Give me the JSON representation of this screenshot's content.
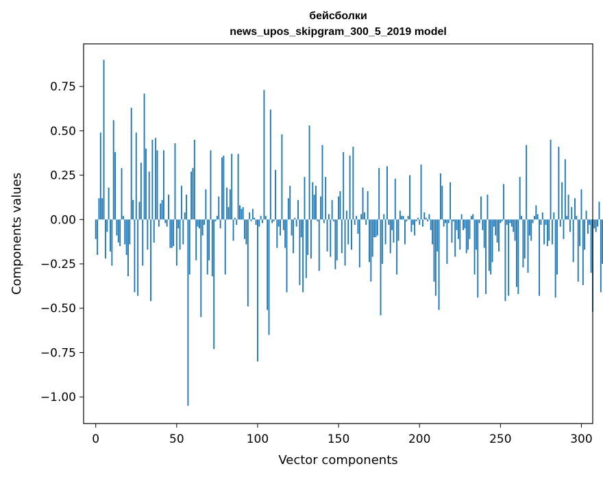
{
  "chart_data": {
    "type": "bar",
    "title": "бейсболки",
    "subtitle": "news_upos_skipgram_300_5_2019 model",
    "xlabel": "Vector components",
    "ylabel": "Components values",
    "xlim": [
      -7.5,
      307
    ],
    "ylim": [
      -1.15,
      0.99
    ],
    "xticks": [
      0,
      50,
      100,
      150,
      200,
      250,
      300
    ],
    "yticks": [
      -1.0,
      -0.75,
      -0.5,
      -0.25,
      0.0,
      0.25,
      0.5,
      0.75
    ],
    "ytick_labels": [
      "−1.00",
      "−0.75",
      "−0.50",
      "−0.25",
      "0.00",
      "0.25",
      "0.50",
      "0.75"
    ],
    "grid": false,
    "bar_color": "#1f77b4",
    "values": [
      -0.11,
      -0.2,
      0.12,
      0.49,
      0.12,
      0.9,
      -0.22,
      -0.07,
      0.18,
      -0.18,
      -0.26,
      0.56,
      0.38,
      -0.09,
      -0.13,
      -0.15,
      0.29,
      0.02,
      -0.14,
      -0.2,
      -0.32,
      -0.14,
      0.63,
      0.11,
      -0.41,
      0.49,
      -0.43,
      0.1,
      0.32,
      -0.26,
      0.71,
      0.4,
      -0.17,
      0.27,
      -0.46,
      0.45,
      -0.13,
      0.46,
      0.39,
      -0.04,
      0.09,
      0.11,
      0.39,
      -0.02,
      -0.04,
      0.14,
      -0.16,
      -0.16,
      -0.15,
      0.43,
      -0.26,
      -0.05,
      -0.17,
      0.19,
      -0.14,
      0.04,
      0.14,
      -1.05,
      -0.31,
      0.27,
      0.29,
      0.45,
      -0.23,
      -0.04,
      -0.05,
      -0.55,
      -0.09,
      -0.03,
      0.17,
      -0.31,
      -0.23,
      0.39,
      -0.32,
      -0.73,
      -0.01,
      0.02,
      0.13,
      -0.05,
      0.35,
      0.36,
      -0.31,
      0.18,
      0.07,
      0.17,
      0.37,
      -0.12,
      0.01,
      -0.03,
      0.37,
      0.08,
      0.06,
      0.07,
      -0.11,
      -0.14,
      -0.49,
      0.04,
      -0.01,
      0.06,
      0.01,
      -0.03,
      -0.8,
      -0.04,
      0.02,
      -0.02,
      0.73,
      0.02,
      -0.51,
      -0.65,
      0.62,
      -0.02,
      -0.01,
      0.28,
      -0.16,
      -0.04,
      -0.09,
      0.48,
      -0.06,
      -0.16,
      -0.41,
      0.12,
      0.19,
      -0.09,
      -0.19,
      0.01,
      -0.04,
      0.11,
      -0.37,
      -0.1,
      -0.41,
      0.24,
      -0.33,
      -0.2,
      0.53,
      -0.22,
      0.21,
      0.14,
      0.19,
      -0.01,
      -0.29,
      0.13,
      0.42,
      -0.02,
      0.24,
      -0.18,
      0.03,
      -0.21,
      0.11,
      -0.01,
      -0.28,
      -0.23,
      0.13,
      0.16,
      -0.19,
      0.38,
      -0.26,
      0.05,
      -0.14,
      0.36,
      -0.17,
      0.41,
      -0.03,
      0.02,
      -0.08,
      -0.27,
      0.03,
      0.18,
      0.04,
      -0.03,
      0.16,
      -0.24,
      -0.35,
      -0.21,
      -0.1,
      -0.1,
      -0.09,
      0.29,
      -0.54,
      -0.25,
      0.03,
      -0.14,
      0.3,
      -0.03,
      -0.19,
      -0.06,
      -0.13,
      0.23,
      -0.31,
      -0.12,
      0.05,
      0.02,
      0.02,
      -0.14,
      -0.01,
      0.02,
      0.25,
      -0.07,
      -0.03,
      -0.09,
      -0.01,
      0.01,
      -0.03,
      0.31,
      -0.04,
      0.04,
      0.01,
      -0.01,
      0.03,
      -0.06,
      -0.14,
      -0.35,
      -0.43,
      -0.18,
      -0.51,
      0.26,
      0.19,
      -0.04,
      -0.02,
      -0.25,
      -0.02,
      0.21,
      -0.13,
      -0.01,
      -0.21,
      -0.06,
      -0.11,
      -0.17,
      0.03,
      -0.06,
      -0.05,
      -0.19,
      -0.17,
      -0.11,
      0.02,
      0.03,
      -0.31,
      -0.17,
      -0.44,
      -0.02,
      0.13,
      -0.06,
      -0.16,
      -0.42,
      0.14,
      -0.29,
      -0.31,
      -0.24,
      -0.04,
      -0.09,
      -0.13,
      -0.18,
      -0.02,
      -0.01,
      0.2,
      -0.46,
      -0.03,
      -0.43,
      -0.02,
      -0.04,
      -0.07,
      -0.12,
      -0.38,
      -0.42,
      0.24,
      0.02,
      -0.27,
      -0.22,
      0.42,
      -0.3,
      -0.09,
      -0.12,
      -0.02,
      0.02,
      0.08,
      0.03,
      -0.43,
      -0.03,
      0.04,
      -0.14,
      -0.03,
      -0.15,
      -0.12,
      0.45,
      -0.14,
      0.04,
      -0.44,
      -0.31,
      0.41,
      -0.04,
      0.21,
      -0.11,
      0.34,
      0.02,
      0.14,
      -0.07,
      0.07,
      -0.24,
      0.12,
      0.02,
      -0.35,
      -0.15,
      0.17,
      -0.37,
      -0.17,
      0.05,
      -0.08,
      -0.03,
      -0.3,
      -0.52,
      -0.05,
      -0.07,
      -0.04,
      0.1,
      -0.41,
      -0.25,
      0.26
    ]
  }
}
